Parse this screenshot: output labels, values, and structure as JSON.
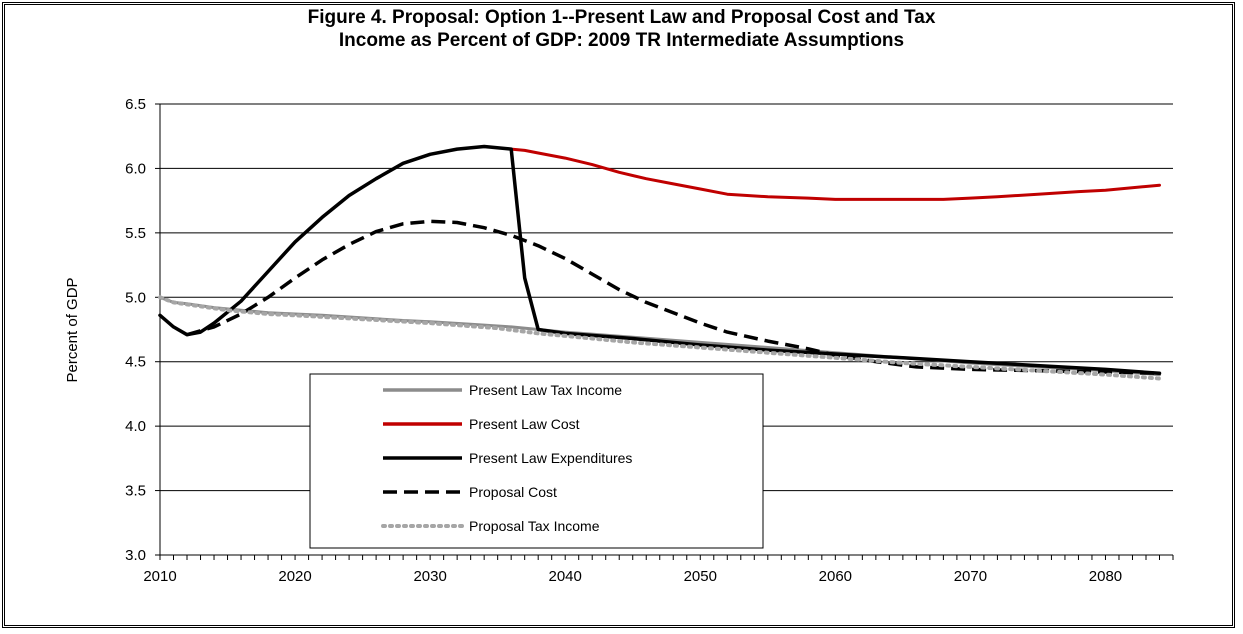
{
  "chart_data": {
    "type": "line",
    "title_line1": "Figure 4. Proposal: Option 1--Present Law and Proposal Cost and Tax",
    "title_line2": "Income as Percent of GDP: 2009 TR Intermediate Assumptions",
    "xlabel": "",
    "ylabel": "Percent of GDP",
    "xlim": [
      2010,
      2085
    ],
    "ylim": [
      3.0,
      6.5
    ],
    "xticks": [
      2010,
      2020,
      2030,
      2040,
      2050,
      2060,
      2070,
      2080
    ],
    "yticks": [
      "3.0",
      "3.5",
      "4.0",
      "4.5",
      "5.0",
      "5.5",
      "6.0",
      "6.5"
    ],
    "grid": "horizontal",
    "legend_position": "bottom-left",
    "series": [
      {
        "name": "Present Law Tax Income",
        "color": "#8c8c8c",
        "style": "solid",
        "points": [
          [
            2010,
            5.0
          ],
          [
            2011,
            4.96
          ],
          [
            2012,
            4.95
          ],
          [
            2014,
            4.92
          ],
          [
            2016,
            4.9
          ],
          [
            2018,
            4.88
          ],
          [
            2020,
            4.87
          ],
          [
            2022,
            4.86
          ],
          [
            2025,
            4.84
          ],
          [
            2028,
            4.82
          ],
          [
            2030,
            4.81
          ],
          [
            2033,
            4.79
          ],
          [
            2036,
            4.77
          ],
          [
            2038,
            4.75
          ],
          [
            2040,
            4.73
          ],
          [
            2045,
            4.69
          ],
          [
            2050,
            4.65
          ],
          [
            2055,
            4.61
          ],
          [
            2060,
            4.57
          ],
          [
            2065,
            4.53
          ],
          [
            2070,
            4.49
          ],
          [
            2075,
            4.46
          ],
          [
            2080,
            4.43
          ],
          [
            2084,
            4.4
          ]
        ]
      },
      {
        "name": "Present Law Cost",
        "color": "#c00000",
        "style": "solid",
        "points": [
          [
            2036,
            6.15
          ],
          [
            2037,
            6.14
          ],
          [
            2038,
            6.12
          ],
          [
            2040,
            6.08
          ],
          [
            2042,
            6.03
          ],
          [
            2044,
            5.97
          ],
          [
            2046,
            5.92
          ],
          [
            2048,
            5.88
          ],
          [
            2050,
            5.84
          ],
          [
            2052,
            5.8
          ],
          [
            2055,
            5.78
          ],
          [
            2058,
            5.77
          ],
          [
            2060,
            5.76
          ],
          [
            2065,
            5.76
          ],
          [
            2068,
            5.76
          ],
          [
            2070,
            5.77
          ],
          [
            2072,
            5.78
          ],
          [
            2075,
            5.8
          ],
          [
            2078,
            5.82
          ],
          [
            2080,
            5.83
          ],
          [
            2084,
            5.87
          ]
        ]
      },
      {
        "name": "Present Law Expenditures",
        "color": "#000000",
        "style": "solid",
        "points": [
          [
            2010,
            4.86
          ],
          [
            2011,
            4.77
          ],
          [
            2012,
            4.71
          ],
          [
            2013,
            4.73
          ],
          [
            2014,
            4.8
          ],
          [
            2016,
            4.97
          ],
          [
            2018,
            5.2
          ],
          [
            2020,
            5.43
          ],
          [
            2022,
            5.62
          ],
          [
            2024,
            5.79
          ],
          [
            2026,
            5.92
          ],
          [
            2028,
            6.04
          ],
          [
            2030,
            6.11
          ],
          [
            2032,
            6.15
          ],
          [
            2034,
            6.17
          ],
          [
            2036,
            6.15
          ],
          [
            2037,
            5.15
          ],
          [
            2038,
            4.75
          ],
          [
            2040,
            4.72
          ],
          [
            2045,
            4.68
          ],
          [
            2050,
            4.63
          ],
          [
            2055,
            4.59
          ],
          [
            2060,
            4.56
          ],
          [
            2065,
            4.53
          ],
          [
            2070,
            4.5
          ],
          [
            2075,
            4.47
          ],
          [
            2080,
            4.44
          ],
          [
            2084,
            4.41
          ]
        ]
      },
      {
        "name": "Proposal Cost",
        "color": "#000000",
        "style": "dashed",
        "points": [
          [
            2012,
            4.71
          ],
          [
            2014,
            4.77
          ],
          [
            2016,
            4.87
          ],
          [
            2018,
            5.0
          ],
          [
            2020,
            5.15
          ],
          [
            2022,
            5.29
          ],
          [
            2024,
            5.41
          ],
          [
            2026,
            5.51
          ],
          [
            2028,
            5.57
          ],
          [
            2030,
            5.59
          ],
          [
            2032,
            5.58
          ],
          [
            2034,
            5.54
          ],
          [
            2036,
            5.48
          ],
          [
            2038,
            5.4
          ],
          [
            2040,
            5.3
          ],
          [
            2042,
            5.18
          ],
          [
            2044,
            5.06
          ],
          [
            2046,
            4.96
          ],
          [
            2048,
            4.88
          ],
          [
            2050,
            4.8
          ],
          [
            2052,
            4.73
          ],
          [
            2055,
            4.66
          ],
          [
            2058,
            4.6
          ],
          [
            2060,
            4.55
          ],
          [
            2063,
            4.5
          ],
          [
            2066,
            4.46
          ],
          [
            2070,
            4.44
          ],
          [
            2075,
            4.43
          ],
          [
            2080,
            4.42
          ],
          [
            2084,
            4.41
          ]
        ]
      },
      {
        "name": "Proposal Tax Income",
        "color": "#a6a6a6",
        "style": "dotted",
        "points": [
          [
            2010,
            5.0
          ],
          [
            2011,
            4.96
          ],
          [
            2013,
            4.93
          ],
          [
            2015,
            4.9
          ],
          [
            2018,
            4.87
          ],
          [
            2020,
            4.86
          ],
          [
            2025,
            4.83
          ],
          [
            2030,
            4.8
          ],
          [
            2035,
            4.76
          ],
          [
            2038,
            4.72
          ],
          [
            2040,
            4.7
          ],
          [
            2045,
            4.65
          ],
          [
            2050,
            4.61
          ],
          [
            2055,
            4.57
          ],
          [
            2060,
            4.53
          ],
          [
            2065,
            4.49
          ],
          [
            2070,
            4.46
          ],
          [
            2075,
            4.43
          ],
          [
            2080,
            4.4
          ],
          [
            2084,
            4.37
          ]
        ]
      }
    ]
  }
}
